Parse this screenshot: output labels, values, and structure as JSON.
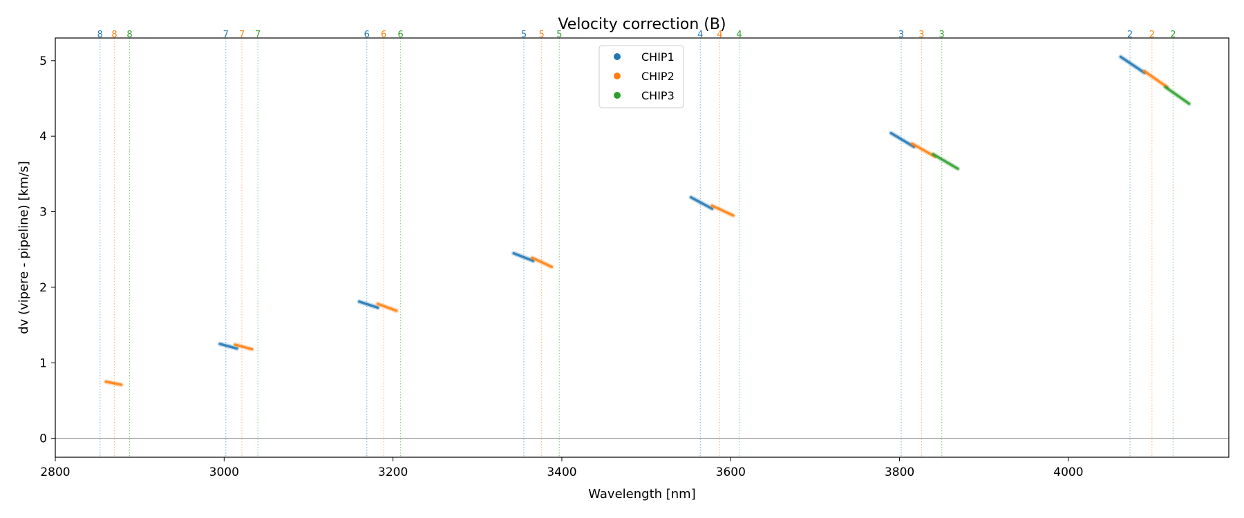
{
  "chart_data": {
    "type": "scatter",
    "title": "Velocity correction (B)",
    "xlabel": "Wavelength [nm]",
    "ylabel": "dv (vipere - pipeline) [km/s]",
    "xlim": [
      2800,
      4190
    ],
    "ylim": [
      -0.25,
      5.3
    ],
    "xticks": [
      2800,
      3000,
      3200,
      3400,
      3600,
      3800,
      4000
    ],
    "yticks": [
      0,
      1,
      2,
      3,
      4,
      5
    ],
    "hline_y": 0,
    "grid": false,
    "legend_position": "upper-center",
    "colors": {
      "CHIP1": "#1f77b4",
      "CHIP2": "#ff7f0e",
      "CHIP3": "#2ca02c"
    },
    "series": [
      {
        "name": "CHIP1",
        "segments": [
          {
            "order": 7,
            "x": [
              2995,
              3015
            ],
            "y": [
              1.25,
              1.19
            ]
          },
          {
            "order": 6,
            "x": [
              3160,
              3182
            ],
            "y": [
              1.81,
              1.73
            ]
          },
          {
            "order": 5,
            "x": [
              3343,
              3366
            ],
            "y": [
              2.45,
              2.35
            ]
          },
          {
            "order": 4,
            "x": [
              3553,
              3578
            ],
            "y": [
              3.19,
              3.04
            ]
          },
          {
            "order": 3,
            "x": [
              3790,
              3817
            ],
            "y": [
              4.04,
              3.86
            ]
          },
          {
            "order": 2,
            "x": [
              4062,
              4090
            ],
            "y": [
              5.05,
              4.84
            ]
          }
        ]
      },
      {
        "name": "CHIP2",
        "segments": [
          {
            "order": 8,
            "x": [
              2860,
              2878
            ],
            "y": [
              0.75,
              0.71
            ]
          },
          {
            "order": 7,
            "x": [
              3013,
              3033
            ],
            "y": [
              1.24,
              1.18
            ]
          },
          {
            "order": 6,
            "x": [
              3182,
              3204
            ],
            "y": [
              1.78,
              1.69
            ]
          },
          {
            "order": 5,
            "x": [
              3365,
              3388
            ],
            "y": [
              2.39,
              2.27
            ]
          },
          {
            "order": 4,
            "x": [
              3578,
              3603
            ],
            "y": [
              3.08,
              2.95
            ]
          },
          {
            "order": 3,
            "x": [
              3815,
              3842
            ],
            "y": [
              3.9,
              3.73
            ]
          },
          {
            "order": 2,
            "x": [
              4090,
              4117
            ],
            "y": [
              4.86,
              4.65
            ]
          }
        ]
      },
      {
        "name": "CHIP3",
        "segments": [
          {
            "order": 3,
            "x": [
              3840,
              3869
            ],
            "y": [
              3.76,
              3.57
            ]
          },
          {
            "order": 2,
            "x": [
              4115,
              4143
            ],
            "y": [
              4.65,
              4.43
            ]
          }
        ]
      }
    ],
    "order_markers": [
      {
        "label": "8",
        "chip": "CHIP1",
        "x": 2853
      },
      {
        "label": "8",
        "chip": "CHIP2",
        "x": 2870
      },
      {
        "label": "8",
        "chip": "CHIP3",
        "x": 2888
      },
      {
        "label": "7",
        "chip": "CHIP1",
        "x": 3002
      },
      {
        "label": "7",
        "chip": "CHIP2",
        "x": 3021
      },
      {
        "label": "7",
        "chip": "CHIP3",
        "x": 3040
      },
      {
        "label": "6",
        "chip": "CHIP1",
        "x": 3169
      },
      {
        "label": "6",
        "chip": "CHIP2",
        "x": 3189
      },
      {
        "label": "6",
        "chip": "CHIP3",
        "x": 3209
      },
      {
        "label": "5",
        "chip": "CHIP1",
        "x": 3355
      },
      {
        "label": "5",
        "chip": "CHIP2",
        "x": 3376
      },
      {
        "label": "5",
        "chip": "CHIP3",
        "x": 3397
      },
      {
        "label": "4",
        "chip": "CHIP1",
        "x": 3564
      },
      {
        "label": "4",
        "chip": "CHIP2",
        "x": 3587
      },
      {
        "label": "4",
        "chip": "CHIP3",
        "x": 3610
      },
      {
        "label": "3",
        "chip": "CHIP1",
        "x": 3802
      },
      {
        "label": "3",
        "chip": "CHIP2",
        "x": 3826
      },
      {
        "label": "3",
        "chip": "CHIP3",
        "x": 3850
      },
      {
        "label": "2",
        "chip": "CHIP1",
        "x": 4073
      },
      {
        "label": "2",
        "chip": "CHIP2",
        "x": 4099
      },
      {
        "label": "2",
        "chip": "CHIP3",
        "x": 4124
      }
    ]
  }
}
